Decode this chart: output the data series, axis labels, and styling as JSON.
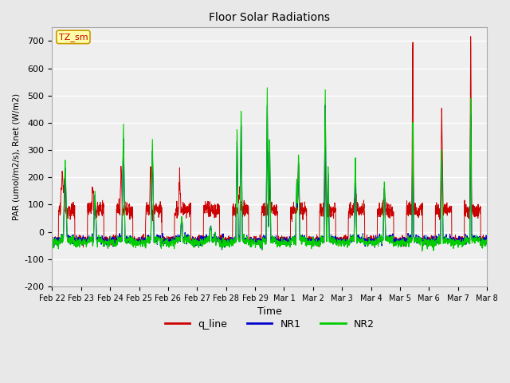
{
  "title": "Floor Solar Radiations",
  "xlabel": "Time",
  "ylabel": "PAR (umol/m2/s), Rnet (W/m2)",
  "ylim": [
    -200,
    750
  ],
  "yticks": [
    -200,
    -100,
    0,
    100,
    200,
    300,
    400,
    500,
    600,
    700
  ],
  "x_labels": [
    "Feb 22",
    "Feb 23",
    "Feb 24",
    "Feb 25",
    "Feb 26",
    "Feb 27",
    "Feb 28",
    "Feb 29",
    "Mar 1",
    "Mar 2",
    "Mar 3",
    "Mar 4",
    "Mar 5",
    "Mar 6",
    "Mar 7",
    "Mar 8"
  ],
  "legend_labels": [
    "q_line",
    "NR1",
    "NR2"
  ],
  "legend_colors": [
    "#cc0000",
    "#0000cc",
    "#00cc00"
  ],
  "annotation_text": "TZ_sm",
  "annotation_color": "#cc0000",
  "annotation_bg": "#ffffaa",
  "background_color": "#e8e8e8",
  "plot_bg_color": "#efefef",
  "fig_width": 6.4,
  "fig_height": 4.8,
  "dpi": 100
}
